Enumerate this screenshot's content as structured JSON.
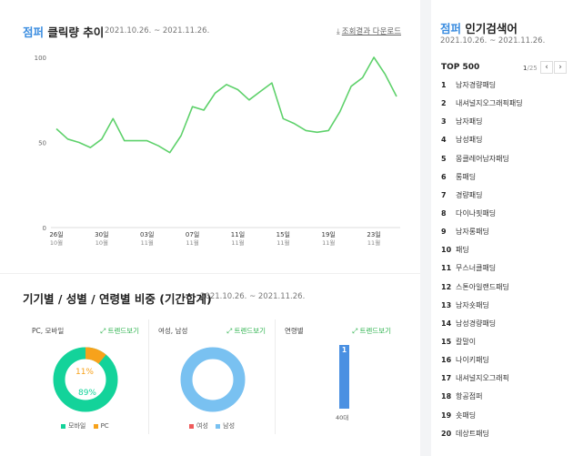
{
  "click_trend": {
    "title_accent": "점퍼",
    "title_rest": "클릭량 추이",
    "date_range": "2021.10.26. ~ 2021.11.26.",
    "download_label": "조회결과 다운로드"
  },
  "breakdown": {
    "title": "기기별 / 성별 / 연령별 비중 (기간합계)",
    "date_range": "2021.10.26. ~ 2021.11.26.",
    "trend_label": "트렌드보기",
    "device": {
      "label": "PC, 모바일",
      "mobile_pct": "89%",
      "pc_pct": "11%",
      "legend_mobile": "모바일",
      "legend_pc": "PC",
      "colors": {
        "mobile": "#13d39a",
        "pc": "#f7a21b"
      }
    },
    "gender": {
      "label": "여성, 남성",
      "male_pct": "100%",
      "legend_female": "여성",
      "legend_male": "남성",
      "colors": {
        "female": "#ef5b5b",
        "male": "#79c1f1"
      }
    },
    "age": {
      "label": "연령별",
      "bar_rank": "1",
      "bar_label": "40대",
      "bar_color": "#4a90e2"
    }
  },
  "popular": {
    "title_accent": "점퍼",
    "title_rest": "인기검색어",
    "date_range": "2021.10.26. ~ 2021.11.26.",
    "top_label": "TOP 500",
    "page_current": "1",
    "page_total": "/25",
    "prev_icon": "‹",
    "next_icon": "›",
    "items": [
      {
        "rank": "1",
        "keyword": "남자경량패딩"
      },
      {
        "rank": "2",
        "keyword": "내셔널지오그래픽패딩"
      },
      {
        "rank": "3",
        "keyword": "남자패딩"
      },
      {
        "rank": "4",
        "keyword": "남성패딩"
      },
      {
        "rank": "5",
        "keyword": "몽클레어남자패딩"
      },
      {
        "rank": "6",
        "keyword": "롱패딩"
      },
      {
        "rank": "7",
        "keyword": "경량패딩"
      },
      {
        "rank": "8",
        "keyword": "다이나핏패딩"
      },
      {
        "rank": "9",
        "keyword": "남자롱패딩"
      },
      {
        "rank": "10",
        "keyword": "패딩"
      },
      {
        "rank": "11",
        "keyword": "무스너클패딩"
      },
      {
        "rank": "12",
        "keyword": "스톤아일랜드패딩"
      },
      {
        "rank": "13",
        "keyword": "남자숏패딩"
      },
      {
        "rank": "14",
        "keyword": "남성경량패딩"
      },
      {
        "rank": "15",
        "keyword": "칼말이"
      },
      {
        "rank": "16",
        "keyword": "나이키패딩"
      },
      {
        "rank": "17",
        "keyword": "내셔널지오그래픽"
      },
      {
        "rank": "18",
        "keyword": "항공점퍼"
      },
      {
        "rank": "19",
        "keyword": "숏패딩"
      },
      {
        "rank": "20",
        "keyword": "데상트패딩"
      }
    ]
  },
  "chart_data": {
    "type": "line",
    "x": [
      "10.26",
      "10.27",
      "10.28",
      "10.29",
      "10.30",
      "10.31",
      "11.01",
      "11.02",
      "11.03",
      "11.04",
      "11.05",
      "11.06",
      "11.07",
      "11.08",
      "11.09",
      "11.10",
      "11.11",
      "11.12",
      "11.13",
      "11.14",
      "11.15",
      "11.16",
      "11.17",
      "11.18",
      "11.19",
      "11.20",
      "11.21",
      "11.22",
      "11.23",
      "11.24",
      "11.25"
    ],
    "series": [
      {
        "values": [
          58,
          52,
          50,
          47,
          52,
          64,
          51,
          51,
          51,
          48,
          44,
          54,
          71,
          69,
          79,
          84,
          81,
          75,
          80,
          85,
          64,
          61,
          57,
          56,
          57,
          68,
          83,
          88,
          100,
          90,
          77
        ]
      }
    ],
    "ylim": [
      0,
      100
    ],
    "yticks": [
      "0",
      "50",
      "100"
    ],
    "xtick_labels": [
      {
        "index": 0,
        "day": "26일",
        "month": "10월"
      },
      {
        "index": 4,
        "day": "30일",
        "month": "10월"
      },
      {
        "index": 8,
        "day": "03일",
        "month": "11월"
      },
      {
        "index": 12,
        "day": "07일",
        "month": "11월"
      },
      {
        "index": 16,
        "day": "11일",
        "month": "11월"
      },
      {
        "index": 20,
        "day": "15일",
        "month": "11월"
      },
      {
        "index": 24,
        "day": "19일",
        "month": "11월"
      },
      {
        "index": 28,
        "day": "23일",
        "month": "11월"
      }
    ],
    "line_color": "#5ed16b",
    "grid": false
  }
}
